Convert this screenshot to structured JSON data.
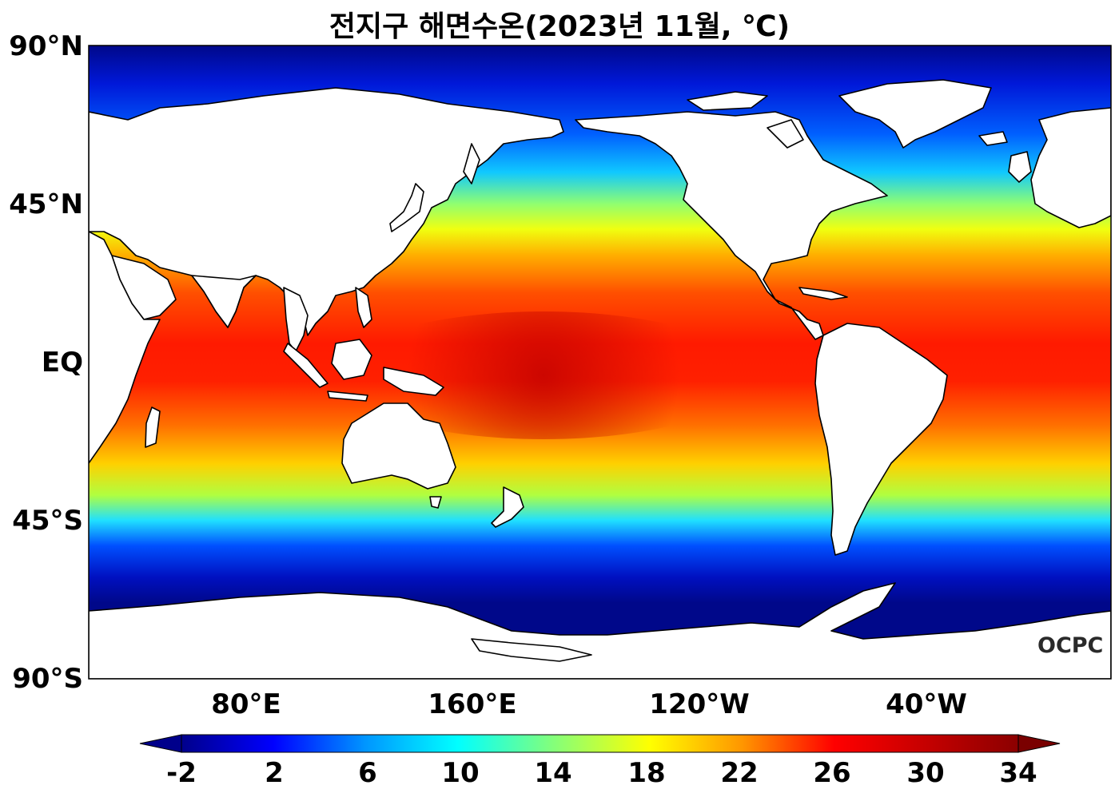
{
  "title": "전지구 해면수온(2023년 11월, ℃)",
  "lat_labels": [
    "90°N",
    "45°N",
    "EQ",
    "45°S",
    "90°S"
  ],
  "lon_labels": [
    "80°E",
    "160°E",
    "120°W",
    "40°W"
  ],
  "colorbar": {
    "ticks": [
      "-2",
      "2",
      "6",
      "10",
      "14",
      "18",
      "22",
      "26",
      "30",
      "34"
    ],
    "colors": [
      "#00008b",
      "#0000ff",
      "#0096ff",
      "#00ffff",
      "#7fff7f",
      "#ffff00",
      "#ff9600",
      "#ff0000",
      "#8b0000"
    ]
  },
  "logo": "OCPC",
  "colors": {
    "polar": "#000c8c",
    "land": "#ffffff",
    "coast": "#000000"
  }
}
